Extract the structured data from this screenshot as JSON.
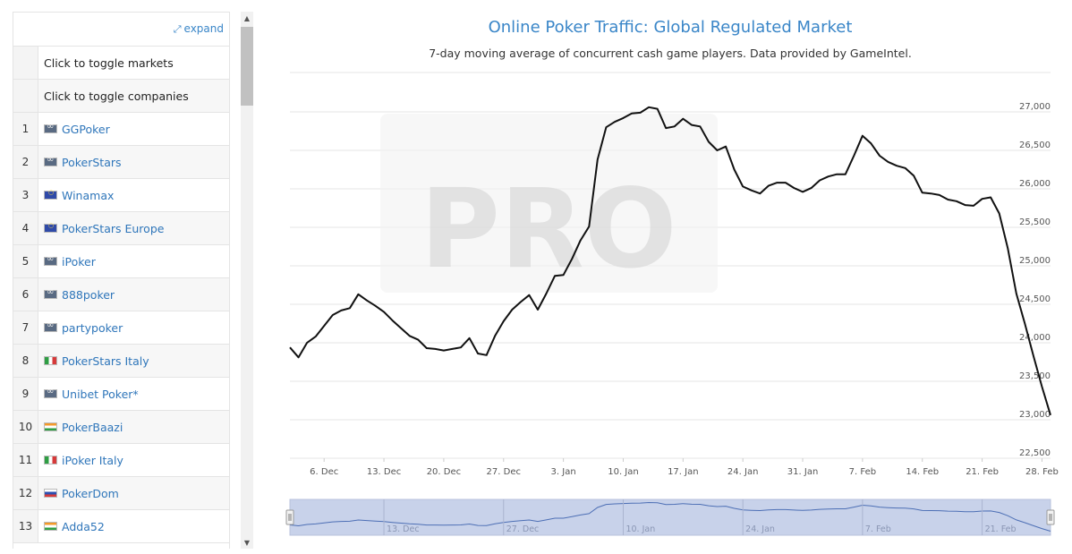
{
  "sidebar": {
    "expand_label": "expand",
    "toggle_markets": "Click to toggle markets",
    "toggle_companies": "Click to toggle companies",
    "rows": [
      {
        "rank": "1",
        "name": "GGPoker",
        "flag": "intl"
      },
      {
        "rank": "2",
        "name": "PokerStars",
        "flag": "intl"
      },
      {
        "rank": "3",
        "name": "Winamax",
        "flag": "eu"
      },
      {
        "rank": "4",
        "name": "PokerStars Europe",
        "flag": "eu"
      },
      {
        "rank": "5",
        "name": "iPoker",
        "flag": "intl"
      },
      {
        "rank": "6",
        "name": "888poker",
        "flag": "intl"
      },
      {
        "rank": "7",
        "name": "partypoker",
        "flag": "intl"
      },
      {
        "rank": "8",
        "name": "PokerStars Italy",
        "flag": "italy"
      },
      {
        "rank": "9",
        "name": "Unibet Poker*",
        "flag": "intl"
      },
      {
        "rank": "10",
        "name": "PokerBaazi",
        "flag": "india"
      },
      {
        "rank": "11",
        "name": "iPoker Italy",
        "flag": "italy"
      },
      {
        "rank": "12",
        "name": "PokerDom",
        "flag": "russia"
      },
      {
        "rank": "13",
        "name": "Adda52",
        "flag": "india"
      }
    ]
  },
  "colors": {
    "title": "#3a86c8",
    "line": "#111111",
    "link": "#2f76ba",
    "navigator_fill": "#c8d2ea",
    "navigator_line": "#4d6fb5"
  },
  "chart_data": {
    "type": "line",
    "title": "Online Poker Traffic: Global Regulated Market",
    "subtitle": "7-day moving average of concurrent cash game players. Data provided by GameIntel.",
    "xlabel": "",
    "ylabel": "",
    "ylim": [
      22500,
      27000
    ],
    "yticks": [
      "22,500",
      "23,000",
      "23,500",
      "24,000",
      "24,500",
      "25,000",
      "25,500",
      "26,000",
      "26,500",
      "27,000"
    ],
    "xticks": [
      "6. Dec",
      "13. Dec",
      "20. Dec",
      "27. Dec",
      "3. Jan",
      "10. Jan",
      "17. Jan",
      "24. Jan",
      "31. Jan",
      "7. Feb",
      "14. Feb",
      "21. Feb",
      "28. Feb"
    ],
    "navigator_ticks": [
      "13. Dec",
      "27. Dec",
      "10. Jan",
      "24. Jan",
      "7. Feb",
      "21. Feb"
    ],
    "grid": true,
    "watermark": "PRO",
    "x_start": "2 Dec",
    "x_step": "1 day",
    "values": [
      23940,
      23810,
      24000,
      24080,
      24220,
      24360,
      24420,
      24450,
      24630,
      24550,
      24480,
      24400,
      24290,
      24190,
      24090,
      24040,
      23930,
      23920,
      23900,
      23920,
      23940,
      24060,
      23860,
      23840,
      24090,
      24280,
      24430,
      24530,
      24620,
      24430,
      24640,
      24870,
      24880,
      25090,
      25330,
      25510,
      26380,
      26800,
      26870,
      26920,
      26980,
      26990,
      27060,
      27040,
      26790,
      26810,
      26910,
      26830,
      26810,
      26610,
      26500,
      26550,
      26250,
      26030,
      25980,
      25940,
      26040,
      26080,
      26080,
      26010,
      25960,
      26010,
      26110,
      26160,
      26190,
      26190,
      26430,
      26690,
      26590,
      26430,
      26350,
      26300,
      26270,
      26170,
      25950,
      25940,
      25920,
      25860,
      25840,
      25790,
      25780,
      25870,
      25890,
      25680,
      25230,
      24640,
      24250,
      23830,
      23430,
      23060
    ]
  }
}
